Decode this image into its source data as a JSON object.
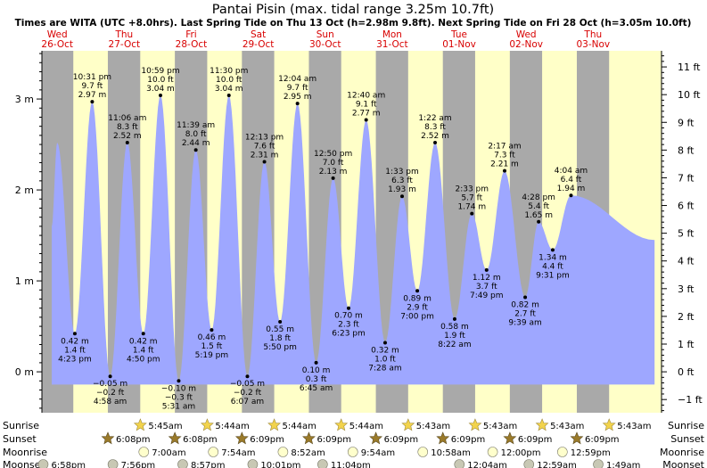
{
  "colors": {
    "night_band": "#a9a9a9",
    "day_band": "#ffffc8",
    "water": "#9ea7ff",
    "day_label": "#d80000",
    "text": "#000000",
    "sunrise_icon": "#f2d34c",
    "sunset_icon": "#9a7a2a",
    "moonrise_icon": "#ffffcc",
    "moonset_icon": "#c8c8b4"
  },
  "chart_data": {
    "type": "area",
    "title": "Pantai Pisin (max. tidal range 3.25m 10.7ft)",
    "subtitle": "Times are WITA (UTC +8.0hrs). Last Spring Tide on Thu 13 Oct (h=2.98m 9.8ft). Next Spring Tide on Fri 28 Oct (h=3.05m 10.0ft)",
    "y_left": {
      "unit": "m",
      "range": [
        -0.45,
        3.53
      ],
      "ticks": [
        {
          "value": 0,
          "label": "0 m"
        },
        {
          "value": 1,
          "label": "1 m"
        },
        {
          "value": 2,
          "label": "2 m"
        },
        {
          "value": 3,
          "label": "3 m"
        }
      ]
    },
    "y_right": {
      "unit": "ft",
      "ticks": [
        {
          "value": -1,
          "label": "−1 ft"
        },
        {
          "value": 0,
          "label": "0 ft"
        },
        {
          "value": 1,
          "label": "1 ft"
        },
        {
          "value": 2,
          "label": "2 ft"
        },
        {
          "value": 3,
          "label": "3 ft"
        },
        {
          "value": 4,
          "label": "4 ft"
        },
        {
          "value": 5,
          "label": "5 ft"
        },
        {
          "value": 6,
          "label": "6 ft"
        },
        {
          "value": 7,
          "label": "7 ft"
        },
        {
          "value": 8,
          "label": "8 ft"
        },
        {
          "value": 9,
          "label": "9 ft"
        },
        {
          "value": 10,
          "label": "10 ft"
        },
        {
          "value": 11,
          "label": "11 ft"
        }
      ]
    },
    "x_range_hours": [
      -5.5,
      216.5
    ],
    "days": [
      {
        "weekday": "Wed",
        "date": "26-Oct",
        "hour": 0
      },
      {
        "weekday": "Thu",
        "date": "27-Oct",
        "hour": 24
      },
      {
        "weekday": "Fri",
        "date": "28-Oct",
        "hour": 48
      },
      {
        "weekday": "Sat",
        "date": "29-Oct",
        "hour": 72
      },
      {
        "weekday": "Sun",
        "date": "30-Oct",
        "hour": 96
      },
      {
        "weekday": "Mon",
        "date": "31-Oct",
        "hour": 120
      },
      {
        "weekday": "Tue",
        "date": "01-Nov",
        "hour": 144
      },
      {
        "weekday": "Wed",
        "date": "02-Nov",
        "hour": 168
      },
      {
        "weekday": "Thu",
        "date": "03-Nov",
        "hour": 192
      }
    ],
    "night_bands": [
      [
        -5.5,
        5.75
      ],
      [
        18.13,
        29.73
      ],
      [
        42.13,
        53.73
      ],
      [
        66.15,
        77.73
      ],
      [
        90.15,
        101.73
      ],
      [
        114.15,
        125.72
      ],
      [
        138.15,
        149.72
      ],
      [
        162.15,
        173.72
      ],
      [
        186.15,
        197.72
      ]
    ],
    "curve_ends": [
      {
        "hour": -2.0,
        "height": 1.6
      },
      {
        "hour": 214.0,
        "height": 1.45
      }
    ],
    "extrema": [
      {
        "hour": 0.0,
        "height": 2.52,
        "type": "high",
        "labels": []
      },
      {
        "hour": 6.3,
        "height": 0.42,
        "type": "low",
        "labels": [
          "0.42 m",
          "1.4 ft",
          "4:23 pm"
        ]
      },
      {
        "hour": 12.52,
        "height": 2.97,
        "type": "high",
        "labels": [
          "10:31 pm",
          "9.7 ft",
          "2.97 m"
        ]
      },
      {
        "hour": 18.97,
        "height": -0.05,
        "type": "low",
        "labels": [
          "−0.05 m",
          "−0.2 ft",
          "4:58 am"
        ]
      },
      {
        "hour": 25.1,
        "height": 2.52,
        "type": "high",
        "labels": [
          "11:06 am",
          "8.3 ft",
          "2.52 m"
        ]
      },
      {
        "hour": 30.83,
        "height": 0.42,
        "type": "low",
        "labels": [
          "0.42 m",
          "1.4 ft",
          "4:50 pm"
        ]
      },
      {
        "hour": 36.98,
        "height": 3.04,
        "type": "high",
        "labels": [
          "10:59 pm",
          "10.0 ft",
          "3.04 m"
        ]
      },
      {
        "hour": 43.52,
        "height": -0.1,
        "type": "low",
        "labels": [
          "−0.10 m",
          "−0.3 ft",
          "5:31 am"
        ]
      },
      {
        "hour": 49.65,
        "height": 2.44,
        "type": "high",
        "labels": [
          "11:39 am",
          "8.0 ft",
          "2.44 m"
        ]
      },
      {
        "hour": 55.32,
        "height": 0.46,
        "type": "low",
        "labels": [
          "0.46 m",
          "1.5 ft",
          "5:19 pm"
        ]
      },
      {
        "hour": 61.5,
        "height": 3.04,
        "type": "high",
        "labels": [
          "11:30 pm",
          "10.0 ft",
          "3.04 m"
        ]
      },
      {
        "hour": 68.12,
        "height": -0.05,
        "type": "low",
        "labels": [
          "−0.05 m",
          "−0.2 ft",
          "6:07 am"
        ]
      },
      {
        "hour": 74.22,
        "height": 2.31,
        "type": "high",
        "labels": [
          "12:13 pm",
          "7.6 ft",
          "2.31 m"
        ]
      },
      {
        "hour": 79.83,
        "height": 0.55,
        "type": "low",
        "labels": [
          "0.55 m",
          "1.8 ft",
          "5:50 pm"
        ]
      },
      {
        "hour": 86.07,
        "height": 2.95,
        "type": "high",
        "labels": [
          "12:04 am",
          "9.7 ft",
          "2.95 m"
        ]
      },
      {
        "hour": 92.75,
        "height": 0.1,
        "type": "low",
        "labels": [
          "0.10 m",
          "0.3 ft",
          "6:45 am"
        ]
      },
      {
        "hour": 98.83,
        "height": 2.13,
        "type": "high",
        "labels": [
          "12:50 pm",
          "7.0 ft",
          "2.13 m"
        ]
      },
      {
        "hour": 104.38,
        "height": 0.7,
        "type": "low",
        "labels": [
          "0.70 m",
          "2.3 ft",
          "6:23 pm"
        ]
      },
      {
        "hour": 110.67,
        "height": 2.77,
        "type": "high",
        "labels": [
          "12:40 am",
          "9.1 ft",
          "2.77 m"
        ]
      },
      {
        "hour": 117.47,
        "height": 0.32,
        "type": "low",
        "labels": [
          "0.32 m",
          "1.0 ft",
          "7:28 am"
        ]
      },
      {
        "hour": 123.55,
        "height": 1.93,
        "type": "high",
        "labels": [
          "1:33 pm",
          "6.3 ft",
          "1.93 m"
        ]
      },
      {
        "hour": 129.0,
        "height": 0.89,
        "type": "low",
        "labels": [
          "0.89 m",
          "2.9 ft",
          "7:00 pm"
        ]
      },
      {
        "hour": 135.37,
        "height": 2.52,
        "type": "high",
        "labels": [
          "1:22 am",
          "8.3 ft",
          "2.52 m"
        ]
      },
      {
        "hour": 142.37,
        "height": 0.58,
        "type": "low",
        "labels": [
          "0.58 m",
          "1.9 ft",
          "8:22 am"
        ]
      },
      {
        "hour": 148.55,
        "height": 1.74,
        "type": "high",
        "labels": [
          "2:33 pm",
          "5.7 ft",
          "1.74 m"
        ]
      },
      {
        "hour": 153.82,
        "height": 1.12,
        "type": "low",
        "labels": [
          "1.12 m",
          "3.7 ft",
          "7:49 pm"
        ]
      },
      {
        "hour": 160.28,
        "height": 2.21,
        "type": "high",
        "labels": [
          "2:17 am",
          "7.3 ft",
          "2.21 m"
        ]
      },
      {
        "hour": 167.65,
        "height": 0.82,
        "type": "low",
        "labels": [
          "0.82 m",
          "2.7 ft",
          "9:39 am"
        ]
      },
      {
        "hour": 172.47,
        "height": 1.65,
        "type": "high",
        "labels": [
          "4:28 pm",
          "5.4 ft",
          "1.65 m"
        ]
      },
      {
        "hour": 177.52,
        "height": 1.34,
        "type": "low",
        "labels": [
          "1.34 m",
          "4.4 ft",
          "9:31 pm"
        ]
      },
      {
        "hour": 184.07,
        "height": 1.94,
        "type": "high",
        "labels": [
          "4:04 am",
          "6.4 ft",
          "1.94 m"
        ]
      }
    ]
  },
  "astro": {
    "rows": [
      {
        "key": "sunrise",
        "label": "Sunrise",
        "icon": "sun-icon",
        "events": [
          {
            "hour": 29.75,
            "time": "5:45am"
          },
          {
            "hour": 53.73,
            "time": "5:44am"
          },
          {
            "hour": 77.73,
            "time": "5:44am"
          },
          {
            "hour": 101.73,
            "time": "5:44am"
          },
          {
            "hour": 125.72,
            "time": "5:43am"
          },
          {
            "hour": 149.72,
            "time": "5:43am"
          },
          {
            "hour": 173.72,
            "time": "5:43am"
          },
          {
            "hour": 197.72,
            "time": "5:43am"
          }
        ]
      },
      {
        "key": "sunset",
        "label": "Sunset",
        "icon": "sunset-icon",
        "events": [
          {
            "hour": 18.13,
            "time": "6:08pm"
          },
          {
            "hour": 42.13,
            "time": "6:08pm"
          },
          {
            "hour": 66.15,
            "time": "6:09pm"
          },
          {
            "hour": 90.15,
            "time": "6:09pm"
          },
          {
            "hour": 114.15,
            "time": "6:09pm"
          },
          {
            "hour": 138.15,
            "time": "6:09pm"
          },
          {
            "hour": 162.15,
            "time": "6:09pm"
          },
          {
            "hour": 186.15,
            "time": "6:09pm"
          }
        ]
      },
      {
        "key": "moonrise",
        "label": "Moonrise",
        "icon": "moonrise-icon",
        "events": [
          {
            "hour": 31.0,
            "time": "7:00am"
          },
          {
            "hour": 55.9,
            "time": "7:54am"
          },
          {
            "hour": 80.87,
            "time": "8:52am"
          },
          {
            "hour": 105.9,
            "time": "9:54am"
          },
          {
            "hour": 130.97,
            "time": "10:58am"
          },
          {
            "hour": 156.0,
            "time": "12:00pm"
          },
          {
            "hour": 180.98,
            "time": "12:59pm"
          }
        ]
      },
      {
        "key": "moonset",
        "label": "Moonset",
        "icon": "moonset-icon",
        "events": [
          {
            "hour": -5.03,
            "time": "6:58pm"
          },
          {
            "hour": 19.93,
            "time": "7:56pm"
          },
          {
            "hour": 44.95,
            "time": "8:57pm"
          },
          {
            "hour": 70.02,
            "time": "10:01pm"
          },
          {
            "hour": 95.07,
            "time": "11:04pm"
          },
          {
            "hour": 144.07,
            "time": "12:04am"
          },
          {
            "hour": 168.98,
            "time": "12:59am"
          },
          {
            "hour": 193.82,
            "time": "1:49am"
          }
        ]
      }
    ]
  }
}
